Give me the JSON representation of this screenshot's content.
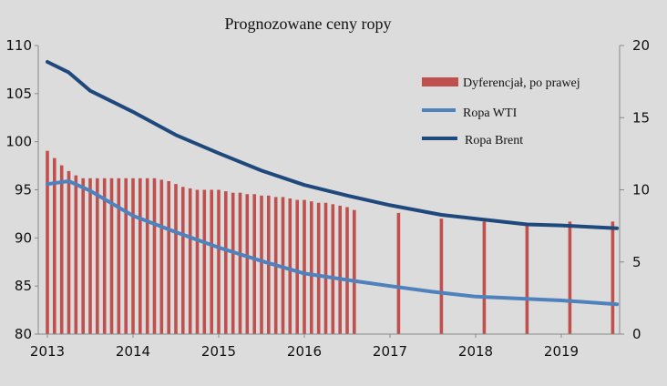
{
  "chart_data": {
    "type": "bar+line",
    "title": "Prognozowane ceny ropy",
    "xlim": [
      2013,
      2019.7
    ],
    "x_ticks": [
      2013,
      2014,
      2015,
      2016,
      2017,
      2018,
      2019
    ],
    "ylim_left": [
      80,
      110
    ],
    "y_ticks_left": [
      80,
      85,
      90,
      95,
      100,
      105,
      110
    ],
    "ylim_right": [
      0,
      20
    ],
    "y_ticks_right": [
      0,
      5,
      10,
      15,
      20
    ],
    "grid": false,
    "legend_position": "top-right",
    "colors": {
      "bars": "#c0504d",
      "wti": "#4f81bd",
      "brent": "#1f497d",
      "background": "#dcdcdc"
    },
    "series": [
      {
        "name": "Dyferencjał, po prawej",
        "type": "bar",
        "axis": "right",
        "x": [
          2013.0,
          2013.083,
          2013.167,
          2013.25,
          2013.333,
          2013.417,
          2013.5,
          2013.583,
          2013.667,
          2013.75,
          2013.833,
          2013.917,
          2014.0,
          2014.083,
          2014.167,
          2014.25,
          2014.333,
          2014.417,
          2014.5,
          2014.583,
          2014.667,
          2014.75,
          2014.833,
          2014.917,
          2015.0,
          2015.083,
          2015.167,
          2015.25,
          2015.333,
          2015.417,
          2015.5,
          2015.583,
          2015.667,
          2015.75,
          2015.833,
          2015.917,
          2016.0,
          2016.083,
          2016.167,
          2016.25,
          2016.333,
          2016.417,
          2016.5,
          2016.583,
          2017.1,
          2017.6,
          2018.1,
          2018.6,
          2019.1,
          2019.6
        ],
        "values": [
          12.7,
          12.2,
          11.7,
          11.3,
          11.0,
          10.8,
          10.8,
          10.8,
          10.8,
          10.8,
          10.8,
          10.8,
          10.8,
          10.8,
          10.8,
          10.8,
          10.7,
          10.6,
          10.4,
          10.2,
          10.1,
          10.0,
          10.0,
          10.0,
          10.0,
          9.9,
          9.8,
          9.8,
          9.7,
          9.7,
          9.6,
          9.6,
          9.5,
          9.5,
          9.4,
          9.3,
          9.3,
          9.2,
          9.1,
          9.1,
          9.0,
          8.9,
          8.8,
          8.6,
          8.4,
          8.0,
          7.8,
          7.5,
          7.8,
          7.8
        ]
      },
      {
        "name": "Ropa WTI",
        "type": "line",
        "axis": "left",
        "x": [
          2013.0,
          2013.25,
          2013.5,
          2014.0,
          2014.5,
          2015.0,
          2015.5,
          2016.0,
          2016.6,
          2017.0,
          2017.5,
          2018.0,
          2018.5,
          2019.0,
          2019.65
        ],
        "values": [
          95.6,
          95.9,
          94.9,
          92.3,
          90.6,
          89.0,
          87.6,
          86.3,
          85.5,
          85.0,
          84.4,
          83.9,
          83.7,
          83.5,
          83.1
        ]
      },
      {
        "name": "Ropa Brent",
        "type": "line",
        "axis": "left",
        "x": [
          2013.0,
          2013.25,
          2013.5,
          2014.0,
          2014.5,
          2015.0,
          2015.5,
          2016.0,
          2016.5,
          2017.0,
          2017.6,
          2018.0,
          2018.6,
          2019.0,
          2019.65
        ],
        "values": [
          108.3,
          107.2,
          105.3,
          103.1,
          100.7,
          98.8,
          97.0,
          95.5,
          94.4,
          93.4,
          92.4,
          92.0,
          91.4,
          91.3,
          91.0
        ]
      }
    ]
  }
}
